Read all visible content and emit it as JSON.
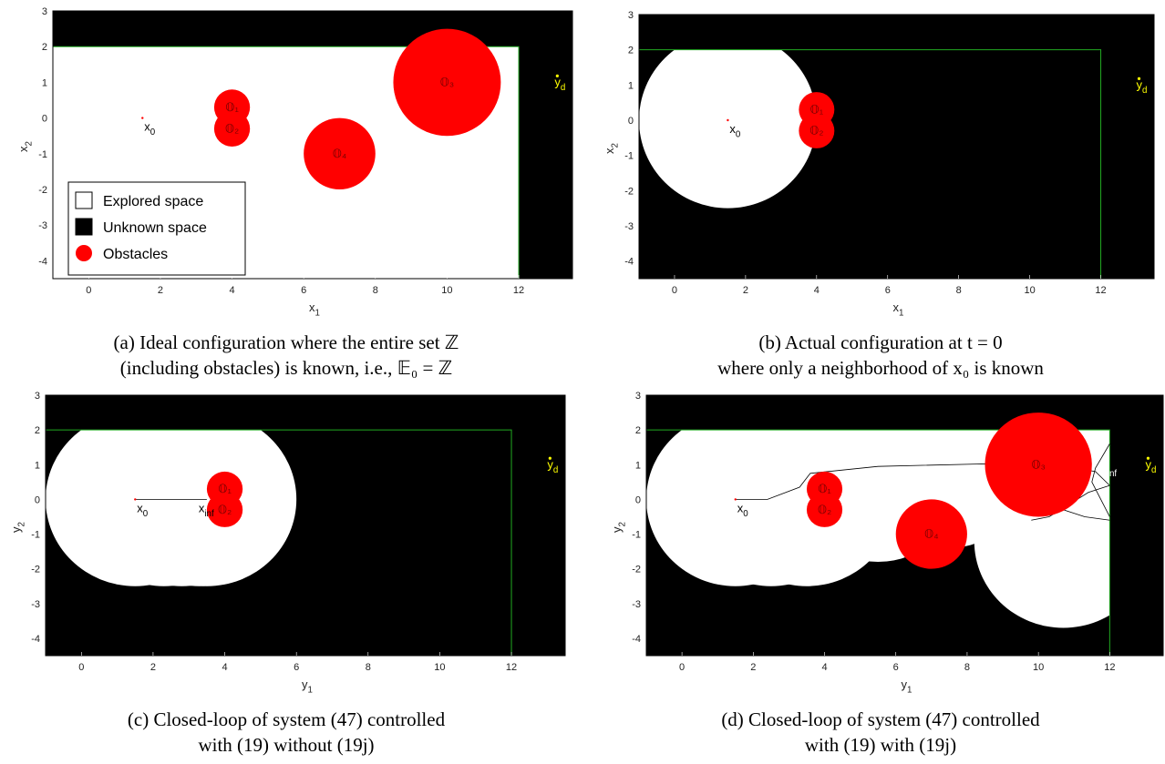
{
  "colors": {
    "explored": "#ffffff",
    "unknown": "#000000",
    "obstacle": "#ff0000",
    "boundary": "#22aa22",
    "goal": "#ffff00",
    "path": "#000000"
  },
  "captions": [
    [
      "(a) Ideal configuration where the entire set ℤ",
      "(including obstacles) is known, i.e., 𝔼₀ = ℤ"
    ],
    [
      "(b) Actual configuration at t = 0",
      "where only a neighborhood of x₀ is known"
    ],
    [
      "(c) Closed-loop of system (47) controlled",
      "with (19) without (19j)"
    ],
    [
      "(d) Closed-loop of system (47) controlled",
      "with (19) with (19j)"
    ]
  ],
  "chart_data": [
    {
      "panel": "a",
      "type": "scatter",
      "xlabel": "x",
      "xlabel_sub": "1",
      "ylabel": "x",
      "ylabel_sub": "2",
      "xlim": [
        -1,
        13.5
      ],
      "ylim": [
        -4.5,
        3
      ],
      "xticks": [
        0,
        2,
        4,
        6,
        8,
        10,
        12
      ],
      "yticks": [
        -4,
        -3,
        -2,
        -1,
        0,
        1,
        2,
        3
      ],
      "domain": {
        "xmax": 12,
        "ymax": 2
      },
      "explored": [
        {
          "shape": "rect",
          "x0": -1,
          "x1": 12,
          "y0": -4.5,
          "y1": 2
        }
      ],
      "obstacles": [
        {
          "label": "𝕆₁",
          "cx": 4,
          "cy": 0.3,
          "r": 0.5
        },
        {
          "label": "𝕆₂",
          "cx": 4,
          "cy": -0.3,
          "r": 0.5
        },
        {
          "label": "𝕆₃",
          "cx": 10,
          "cy": 1,
          "r": 1.5
        },
        {
          "label": "𝕆₄",
          "cx": 7,
          "cy": -1,
          "r": 1
        }
      ],
      "start": {
        "label": "x",
        "sub": "0",
        "x": 1.5,
        "y": 0
      },
      "goal": {
        "label": "y",
        "sub": "d",
        "x": 13,
        "y": 1
      },
      "legend": {
        "position": "bottom-left",
        "items": [
          {
            "label": "Explored space",
            "kind": "explored"
          },
          {
            "label": "Unknown space",
            "kind": "unknown"
          },
          {
            "label": "Obstacles",
            "kind": "obstacle"
          }
        ]
      }
    },
    {
      "panel": "b",
      "type": "scatter",
      "xlabel": "x",
      "xlabel_sub": "1",
      "ylabel": "x",
      "ylabel_sub": "2",
      "xlim": [
        -1,
        13.5
      ],
      "ylim": [
        -4.5,
        3
      ],
      "xticks": [
        0,
        2,
        4,
        6,
        8,
        10,
        12
      ],
      "yticks": [
        -4,
        -3,
        -2,
        -1,
        0,
        1,
        2,
        3
      ],
      "domain": {
        "xmax": 12,
        "ymax": 2
      },
      "explored": [
        {
          "shape": "circle",
          "cx": 1.5,
          "cy": 0,
          "r": 2.5
        }
      ],
      "obstacles": [
        {
          "label": "𝕆₁",
          "cx": 4,
          "cy": 0.3,
          "r": 0.5
        },
        {
          "label": "𝕆₂",
          "cx": 4,
          "cy": -0.3,
          "r": 0.5
        }
      ],
      "start": {
        "label": "x",
        "sub": "0",
        "x": 1.5,
        "y": 0
      },
      "goal": {
        "label": "y",
        "sub": "d",
        "x": 13,
        "y": 1
      }
    },
    {
      "panel": "c",
      "type": "line",
      "xlabel": "y",
      "xlabel_sub": "1",
      "ylabel": "y",
      "ylabel_sub": "2",
      "xlim": [
        -1,
        13.5
      ],
      "ylim": [
        -4.5,
        3
      ],
      "xticks": [
        0,
        2,
        4,
        6,
        8,
        10,
        12
      ],
      "yticks": [
        -4,
        -3,
        -2,
        -1,
        0,
        1,
        2,
        3
      ],
      "domain": {
        "xmax": 12,
        "ymax": 2
      },
      "explored": [
        {
          "shape": "circle",
          "cx": 1.5,
          "cy": 0,
          "r": 2.5
        },
        {
          "shape": "circle",
          "cx": 2.3,
          "cy": 0,
          "r": 2.5
        },
        {
          "shape": "circle",
          "cx": 2.8,
          "cy": 0,
          "r": 2.5
        },
        {
          "shape": "circle",
          "cx": 3.3,
          "cy": 0,
          "r": 2.5
        },
        {
          "shape": "circle",
          "cx": 3.5,
          "cy": 0,
          "r": 2.5
        }
      ],
      "obstacles": [
        {
          "label": "𝕆₁",
          "cx": 4,
          "cy": 0.3,
          "r": 0.5
        },
        {
          "label": "𝕆₂",
          "cx": 4,
          "cy": -0.3,
          "r": 0.5
        }
      ],
      "paths": [
        [
          [
            1.5,
            0
          ],
          [
            3.5,
            0
          ]
        ]
      ],
      "start": {
        "label": "x",
        "sub": "0",
        "x": 1.5,
        "y": 0
      },
      "final": {
        "label": "x",
        "sub": "inf",
        "x": 3.5,
        "y": 0
      },
      "goal": {
        "label": "y",
        "sub": "d",
        "x": 13,
        "y": 1
      }
    },
    {
      "panel": "d",
      "type": "line",
      "xlabel": "y",
      "xlabel_sub": "1",
      "ylabel": "y",
      "ylabel_sub": "2",
      "xlim": [
        -1,
        13.5
      ],
      "ylim": [
        -4.5,
        3
      ],
      "xticks": [
        0,
        2,
        4,
        6,
        8,
        10,
        12
      ],
      "yticks": [
        -4,
        -3,
        -2,
        -1,
        0,
        1,
        2,
        3
      ],
      "domain": {
        "xmax": 12,
        "ymax": 2
      },
      "explored": [
        {
          "shape": "circle",
          "cx": 1.5,
          "cy": 0,
          "r": 2.5
        },
        {
          "shape": "circle",
          "cx": 2.5,
          "cy": 0,
          "r": 2.5
        },
        {
          "shape": "circle",
          "cx": 3.5,
          "cy": 0,
          "r": 2.5
        },
        {
          "shape": "circle",
          "cx": 5.5,
          "cy": 0.5,
          "r": 2.3
        },
        {
          "shape": "circle",
          "cx": 7.5,
          "cy": 0.7,
          "r": 2.1
        },
        {
          "shape": "circle",
          "cx": 8.5,
          "cy": 1.3,
          "r": 2.2
        },
        {
          "shape": "circle",
          "cx": 10.7,
          "cy": -1.2,
          "r": 2.5
        },
        {
          "shape": "circle",
          "cx": 11.4,
          "cy": 0.4,
          "r": 2.0
        }
      ],
      "obstacles": [
        {
          "label": "𝕆₁",
          "cx": 4,
          "cy": 0.3,
          "r": 0.5
        },
        {
          "label": "𝕆₂",
          "cx": 4,
          "cy": -0.3,
          "r": 0.5
        },
        {
          "label": "𝕆₃",
          "cx": 10,
          "cy": 1,
          "r": 1.5
        },
        {
          "label": "𝕆₄",
          "cx": 7,
          "cy": -1,
          "r": 1
        }
      ],
      "paths": [
        [
          [
            1.5,
            0
          ],
          [
            2.4,
            0
          ],
          [
            3.3,
            0.35
          ],
          [
            3.6,
            0.75
          ],
          [
            5.5,
            0.95
          ],
          [
            8.4,
            1.02
          ],
          [
            10.5,
            1.0
          ],
          [
            11.6,
            0.8
          ],
          [
            12.0,
            0.4
          ]
        ],
        [
          [
            12.0,
            0.4
          ],
          [
            11.4,
            0.2
          ],
          [
            10.7,
            -0.25
          ],
          [
            10.3,
            -0.5
          ],
          [
            9.8,
            -0.6
          ]
        ],
        [
          [
            8.7,
            1.05
          ],
          [
            9.5,
            0.6
          ],
          [
            10.4,
            -0.2
          ],
          [
            11.3,
            -0.5
          ],
          [
            12.0,
            -0.6
          ]
        ],
        [
          [
            12.0,
            1.6
          ],
          [
            11.6,
            0.9
          ],
          [
            11.5,
            0.5
          ],
          [
            12.0,
            -0.5
          ]
        ]
      ],
      "start": {
        "label": "x",
        "sub": "0",
        "x": 1.5,
        "y": 0
      },
      "final": {
        "label": "x",
        "sub": "inf",
        "x": 12,
        "y": 1.15
      },
      "goal": {
        "label": "y",
        "sub": "d",
        "x": 13,
        "y": 1
      }
    }
  ]
}
